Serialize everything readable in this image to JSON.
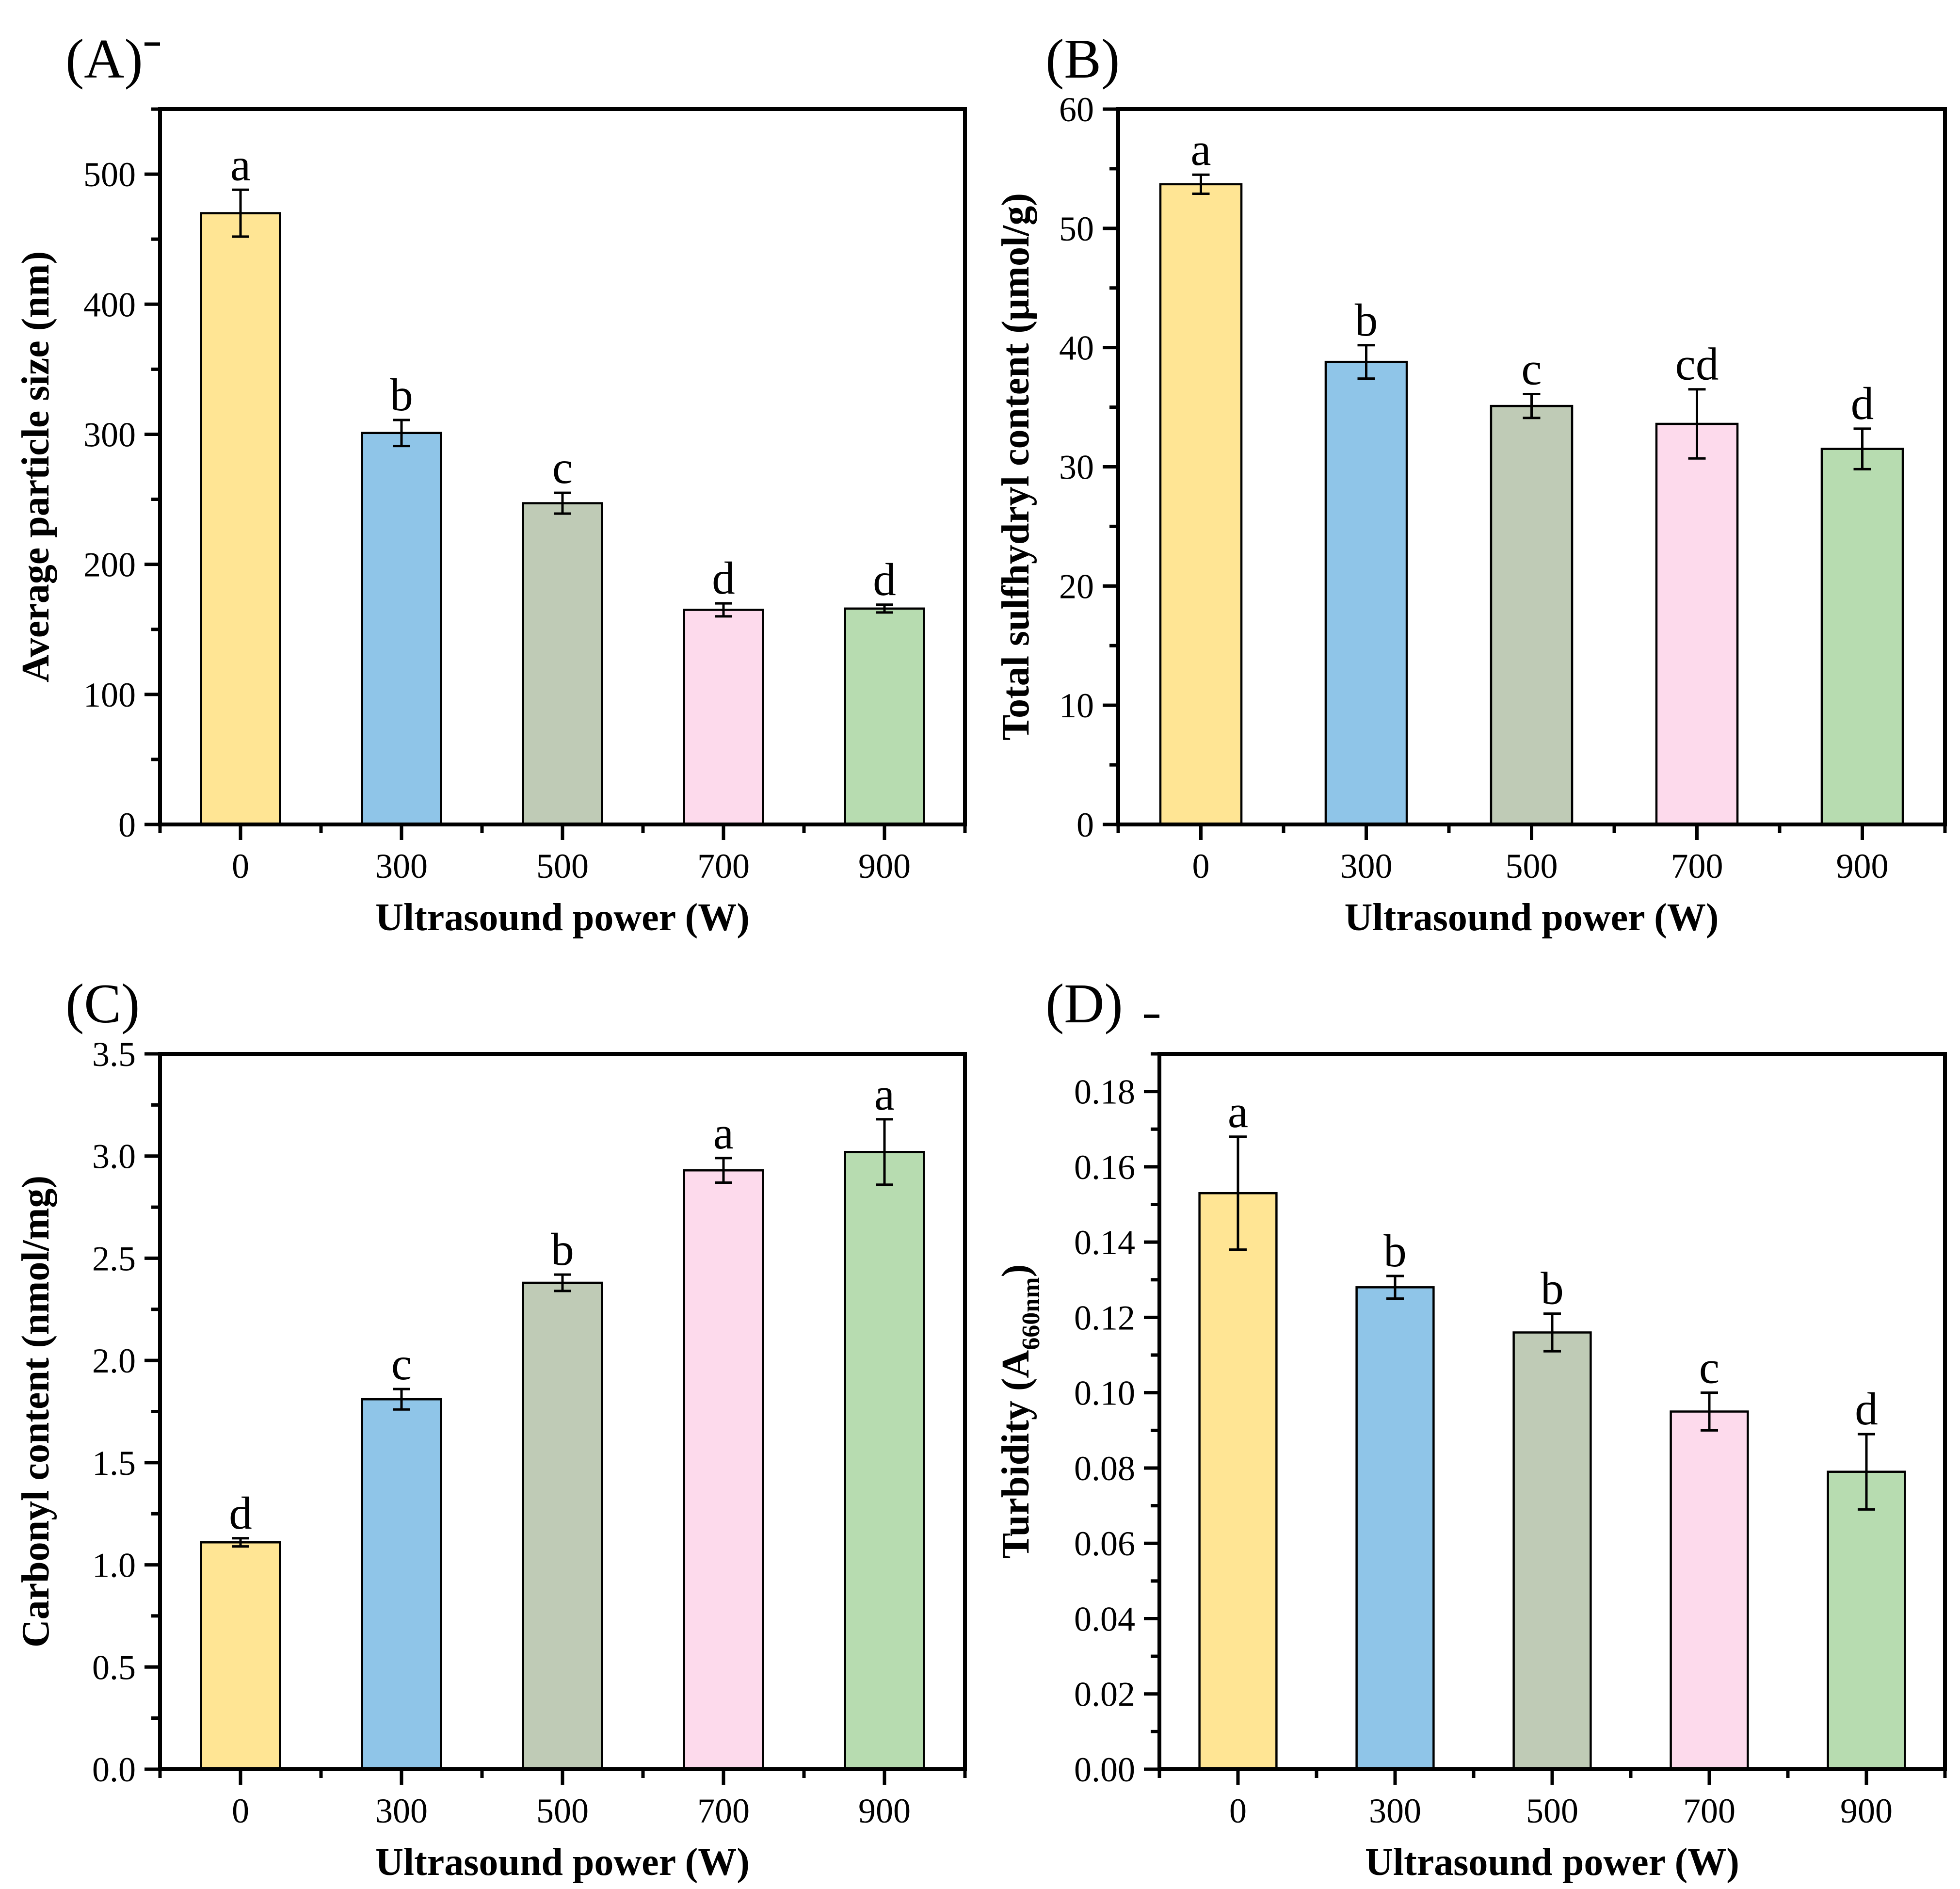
{
  "figure": {
    "background": "#ffffff",
    "axis_color": "#000000",
    "bar_edge_color": "#000000",
    "bar_fill_colors": [
      "#FFE594",
      "#8FC5E8",
      "#BFCBB6",
      "#FDDAEC",
      "#B7DCB0"
    ],
    "error_bar_color": "#000000",
    "xlabel": "Ultrasound power (W)",
    "categories": [
      "0",
      "300",
      "500",
      "700",
      "900"
    ]
  },
  "chart_data": [
    {
      "type": "bar",
      "panel_label": "(A)",
      "title": "",
      "xlabel": "Ultrasound power (W)",
      "ylabel_rich": [
        {
          "text": "Average particle size (nm)",
          "sub": false
        }
      ],
      "categories": [
        "0",
        "300",
        "500",
        "700",
        "900"
      ],
      "values": [
        470,
        301,
        247,
        165,
        166
      ],
      "errors": [
        18,
        10,
        8,
        5,
        3
      ],
      "sig_letters": [
        "a",
        "b",
        "c",
        "d",
        "d"
      ],
      "ylim": [
        0,
        550
      ],
      "ytick_step": 100,
      "yminor_step": 50,
      "ytick_labels": [
        "0",
        "100",
        "200",
        "300",
        "400",
        "500"
      ],
      "grid": false,
      "legend": null
    },
    {
      "type": "bar",
      "panel_label": "(B)",
      "title": "",
      "xlabel": "Ultrasound power (W)",
      "ylabel_rich": [
        {
          "text": "Total sulfhydryl content (μmol/g)",
          "sub": false
        }
      ],
      "categories": [
        "0",
        "300",
        "500",
        "700",
        "900"
      ],
      "values": [
        53.7,
        38.8,
        35.1,
        33.6,
        31.5
      ],
      "errors": [
        0.8,
        1.4,
        1.0,
        2.9,
        1.7
      ],
      "sig_letters": [
        "a",
        "b",
        "c",
        "cd",
        "d"
      ],
      "ylim": [
        0,
        60
      ],
      "ytick_step": 10,
      "yminor_step": 5,
      "ytick_labels": [
        "0",
        "10",
        "20",
        "30",
        "40",
        "50",
        "60"
      ],
      "grid": false,
      "legend": null
    },
    {
      "type": "bar",
      "panel_label": "(C)",
      "title": "",
      "xlabel": "Ultrasound power (W)",
      "ylabel_rich": [
        {
          "text": "Carbonyl content (nmol/mg)",
          "sub": false
        }
      ],
      "categories": [
        "0",
        "300",
        "500",
        "700",
        "900"
      ],
      "values": [
        1.11,
        1.81,
        2.38,
        2.93,
        3.02
      ],
      "errors": [
        0.02,
        0.05,
        0.04,
        0.06,
        0.16
      ],
      "sig_letters": [
        "d",
        "c",
        "b",
        "a",
        "a"
      ],
      "ylim": [
        0,
        3.5
      ],
      "ytick_step": 0.5,
      "yminor_step": 0.25,
      "ytick_labels": [
        "0.0",
        "0.5",
        "1.0",
        "1.5",
        "2.0",
        "2.5",
        "3.0",
        "3.5"
      ],
      "grid": false,
      "legend": null
    },
    {
      "type": "bar",
      "panel_label": "(D)",
      "title": "",
      "xlabel": "Ultrasound power (W)",
      "ylabel_rich": [
        {
          "text": "Turbidity (A",
          "sub": false
        },
        {
          "text": "660nm",
          "sub": true
        },
        {
          "text": ")",
          "sub": false
        }
      ],
      "categories": [
        "0",
        "300",
        "500",
        "700",
        "900"
      ],
      "values": [
        0.153,
        0.128,
        0.116,
        0.095,
        0.079
      ],
      "errors": [
        0.015,
        0.003,
        0.005,
        0.005,
        0.01
      ],
      "sig_letters": [
        "a",
        "b",
        "b",
        "c",
        "d"
      ],
      "ylim": [
        0,
        0.19
      ],
      "ytick_step": 0.02,
      "yminor_step": 0.01,
      "ytick_labels": [
        "0.00",
        "0.02",
        "0.04",
        "0.06",
        "0.08",
        "0.10",
        "0.12",
        "0.14",
        "0.16",
        "0.18"
      ],
      "grid": false,
      "legend": null
    }
  ]
}
